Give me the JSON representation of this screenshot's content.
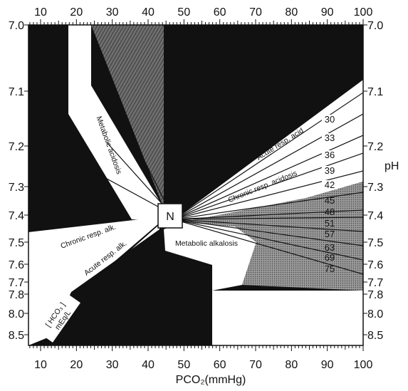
{
  "diagram": {
    "x_axis": {
      "title": "PCO₂(mmHg)",
      "ticks": [
        "10",
        "20",
        "30",
        "40",
        "50",
        "60",
        "70",
        "80",
        "90",
        "100"
      ]
    },
    "y_axis": {
      "title": "pH",
      "ticks": [
        "7.0",
        "7.1",
        "7.2",
        "7.3",
        "7.4",
        "7.5",
        "7.6",
        "7.7",
        "7.8",
        "8.0",
        "8.5"
      ]
    },
    "center_label": "N",
    "regions": {
      "metabolic_acidosis": "Metabolic acidosis",
      "metabolic_alkalosis": "Metabolic alkalosis",
      "acute_resp_acid": "Acute resp. acid",
      "chronic_resp_acidosis": "Chronic resp. acidosis",
      "chronic_resp_alk": "Chronic resp. alk.",
      "acute_resp_alk": "Acute resp. alk."
    },
    "hco3_label_line1": "[ HCO₃ ]",
    "hco3_label_line2": "mEq/L",
    "isopleth_labels": [
      "30",
      "33",
      "36",
      "39",
      "42",
      "45",
      "48",
      "51",
      "57",
      "63",
      "69",
      "75"
    ]
  }
}
